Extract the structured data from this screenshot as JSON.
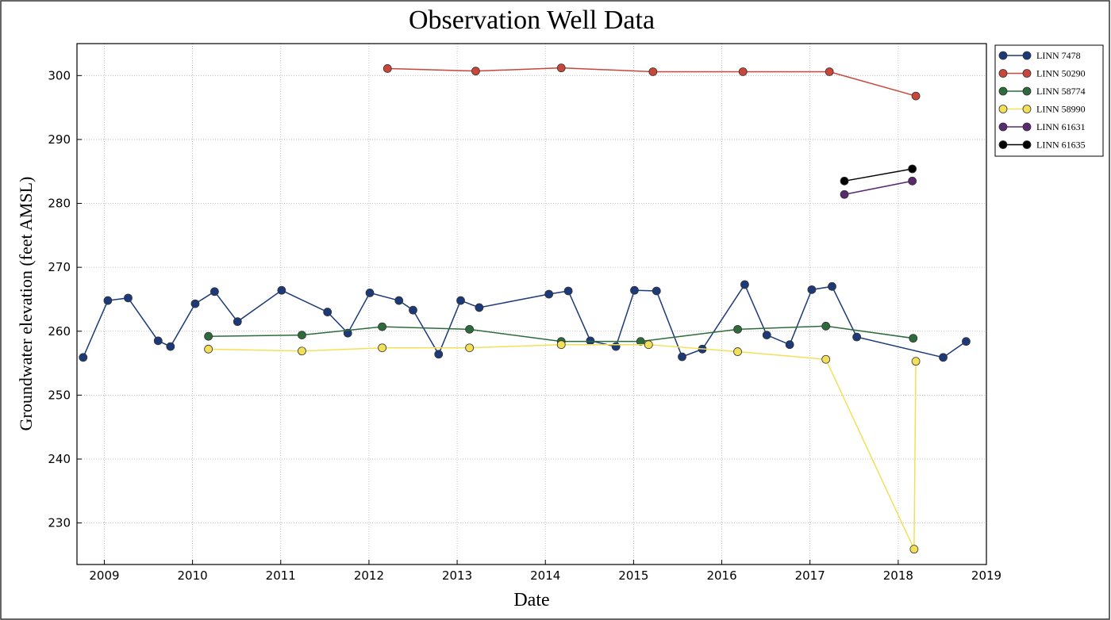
{
  "chart_data": {
    "type": "line",
    "title": "Observation Well Data",
    "x_label": "Date",
    "y_label": "Groundwater elevation (feet AMSL)",
    "xlim": [
      2008.69,
      2019.0
    ],
    "xticks": [
      2009,
      2010,
      2011,
      2012,
      2013,
      2014,
      2015,
      2016,
      2017,
      2018,
      2019
    ],
    "ylim": [
      223.5,
      305
    ],
    "yticks": [
      230,
      240,
      250,
      260,
      270,
      280,
      290,
      300
    ],
    "grid": true,
    "legend": "outside upper right",
    "series": [
      {
        "name": "LINN 7478",
        "color": "#1c3a78",
        "x": [
          2008.76,
          2009.04,
          2009.27,
          2009.61,
          2009.75,
          2010.03,
          2010.25,
          2010.51,
          2011.01,
          2011.53,
          2011.76,
          2012.01,
          2012.34,
          2012.5,
          2012.79,
          2013.04,
          2013.25,
          2014.04,
          2014.26,
          2014.51,
          2014.8,
          2015.01,
          2015.26,
          2015.55,
          2015.78,
          2016.26,
          2016.51,
          2016.77,
          2017.02,
          2017.25,
          2017.53,
          2018.51,
          2018.77
        ],
        "values": [
          255.9,
          264.8,
          265.2,
          258.5,
          257.6,
          264.3,
          266.2,
          261.5,
          266.4,
          263.0,
          259.7,
          266.0,
          264.8,
          263.3,
          256.4,
          264.8,
          263.7,
          265.8,
          266.3,
          258.5,
          257.6,
          266.4,
          266.3,
          256.0,
          257.2,
          267.3,
          259.4,
          257.9,
          266.5,
          267.0,
          259.1,
          255.9,
          258.4
        ]
      },
      {
        "name": "LINN 50290",
        "color": "#c8463a",
        "x": [
          2012.21,
          2013.21,
          2014.18,
          2015.22,
          2016.24,
          2017.22,
          2018.2
        ],
        "values": [
          301.1,
          300.7,
          301.2,
          300.6,
          300.6,
          300.6,
          296.8
        ]
      },
      {
        "name": "LINN 58774",
        "color": "#2e6b3a",
        "x": [
          2010.18,
          2011.24,
          2012.15,
          2013.14,
          2014.18,
          2015.08,
          2016.18,
          2017.18,
          2018.17
        ],
        "values": [
          259.2,
          259.4,
          260.7,
          260.3,
          258.4,
          258.4,
          260.3,
          260.8,
          258.9
        ]
      },
      {
        "name": "LINN 58990",
        "color": "#f2e05a",
        "x": [
          2010.18,
          2011.24,
          2012.15,
          2013.14,
          2014.18,
          2015.17,
          2016.18,
          2017.18,
          2018.18,
          2018.2
        ],
        "values": [
          257.2,
          256.9,
          257.4,
          257.4,
          257.9,
          257.9,
          256.8,
          255.6,
          225.9,
          255.3
        ]
      },
      {
        "name": "LINN 61631",
        "color": "#5a2a6e",
        "x": [
          2017.39,
          2018.16
        ],
        "values": [
          281.4,
          283.5
        ]
      },
      {
        "name": "LINN 61635",
        "color": "#000000",
        "x": [
          2017.39,
          2018.16
        ],
        "values": [
          283.5,
          285.4
        ]
      }
    ]
  }
}
